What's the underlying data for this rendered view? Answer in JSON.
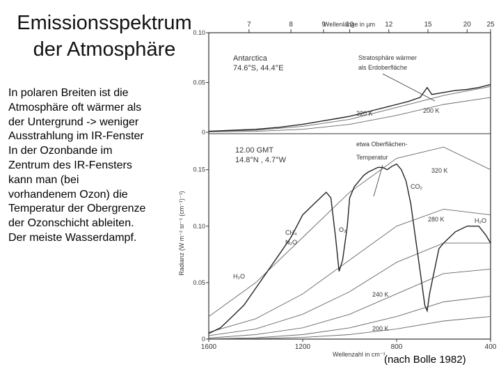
{
  "slide": {
    "title_line1": "Emissionsspektrum",
    "title_line2": "der Atmosphäre",
    "body_lines": [
      "In polaren Breiten ist die",
      "Atmosphäre oft wärmer als",
      "der Untergrund -> weniger",
      "Ausstrahlung im IR-Fenster",
      "In der Ozonbande im",
      "Zentrum des IR-Fensters",
      "kann man (bei",
      "vorhandenem Ozon) die",
      "Temperatur der Obergrenze",
      "der Ozonschicht ableiten.",
      "Der meiste Wasserdampf."
    ],
    "source": "(nach Bolle 1982)"
  },
  "colors": {
    "ink": "#333333",
    "curve": "#666666",
    "background": "#ffffff"
  },
  "chart_data": {
    "type": "line",
    "top_axis_label": "Wellenlänge in µm",
    "top_ticks": [
      7,
      8,
      9,
      10,
      12,
      15,
      20,
      25
    ],
    "xlabel": "Wellenzahl in cm⁻¹",
    "x_ticks": [
      1600,
      1200,
      800,
      400
    ],
    "xlim": [
      1600,
      400
    ],
    "ylabel": "Radianz  (W m⁻² sr⁻¹ (cm⁻¹)⁻¹)",
    "panels": [
      {
        "name": "top",
        "labels": [
          "Antarctica",
          "74.6°S, 44.4°E"
        ],
        "y_ticks": [
          0,
          0.05,
          0.1
        ],
        "ylim": [
          0,
          0.1
        ],
        "annotations": [
          "Stratosphäre wärmer",
          "als Erdoberfläche"
        ],
        "planck_labels": [
          "220 K",
          "200 K"
        ],
        "spectrum": {
          "x": [
            1600,
            1500,
            1400,
            1300,
            1200,
            1100,
            1050,
            1000,
            950,
            900,
            850,
            800,
            750,
            700,
            670,
            650,
            600,
            550,
            500,
            450,
            400
          ],
          "y": [
            0.001,
            0.002,
            0.003,
            0.005,
            0.008,
            0.012,
            0.014,
            0.016,
            0.019,
            0.022,
            0.025,
            0.028,
            0.031,
            0.035,
            0.045,
            0.038,
            0.04,
            0.042,
            0.043,
            0.045,
            0.048
          ]
        },
        "planck_curves": [
          {
            "x": [
              1600,
              1400,
              1200,
              1000,
              800,
              600,
              400
            ],
            "y": [
              0.001,
              0.002,
              0.006,
              0.013,
              0.025,
              0.037,
              0.046
            ]
          },
          {
            "x": [
              1600,
              1400,
              1200,
              1000,
              800,
              600,
              400
            ],
            "y": [
              0.0005,
              0.001,
              0.003,
              0.008,
              0.017,
              0.028,
              0.035
            ]
          }
        ]
      },
      {
        "name": "bottom",
        "labels": [
          "12.00 GMT",
          "14.8°N , 4.7°W"
        ],
        "y_ticks": [
          0,
          0.05,
          0.1,
          0.15
        ],
        "ylim": [
          0,
          0.18
        ],
        "annotations": [
          "etwa Oberflächen-",
          "Temperatur"
        ],
        "planck_labels": [
          "320 K",
          "280 K",
          "240 K",
          "200 K"
        ],
        "band_labels": [
          "CO₂",
          "O₃",
          "CH₄",
          "N₂O",
          "H₂O",
          "H₂O"
        ],
        "spectrum": {
          "x": [
            1600,
            1550,
            1500,
            1450,
            1400,
            1350,
            1300,
            1250,
            1200,
            1150,
            1100,
            1080,
            1060,
            1045,
            1030,
            1010,
            1000,
            980,
            960,
            940,
            920,
            900,
            880,
            860,
            840,
            820,
            800,
            780,
            760,
            740,
            720,
            700,
            680,
            670,
            660,
            640,
            620,
            600,
            550,
            500,
            450,
            420,
            400
          ],
          "y": [
            0.005,
            0.01,
            0.02,
            0.03,
            0.045,
            0.06,
            0.075,
            0.09,
            0.11,
            0.12,
            0.13,
            0.125,
            0.09,
            0.06,
            0.07,
            0.1,
            0.125,
            0.135,
            0.14,
            0.145,
            0.148,
            0.15,
            0.152,
            0.152,
            0.15,
            0.153,
            0.155,
            0.15,
            0.14,
            0.12,
            0.09,
            0.06,
            0.03,
            0.025,
            0.04,
            0.06,
            0.08,
            0.085,
            0.095,
            0.1,
            0.1,
            0.092,
            0.085
          ]
        },
        "planck_curves": [
          {
            "x": [
              1600,
              1400,
              1200,
              1000,
              800,
              600,
              400
            ],
            "y": [
              0.02,
              0.05,
              0.09,
              0.13,
              0.16,
              0.17,
              0.15
            ]
          },
          {
            "x": [
              1600,
              1400,
              1200,
              1000,
              800,
              600,
              400
            ],
            "y": [
              0.006,
              0.018,
              0.04,
              0.07,
              0.1,
              0.115,
              0.11
            ]
          },
          {
            "x": [
              1600,
              1400,
              1200,
              1000,
              800,
              600,
              400
            ],
            "y": [
              0.003,
              0.009,
              0.022,
              0.042,
              0.068,
              0.085,
              0.085
            ]
          },
          {
            "x": [
              1600,
              1400,
              1200,
              1000,
              800,
              600,
              400
            ],
            "y": [
              0.001,
              0.004,
              0.01,
              0.022,
              0.04,
              0.058,
              0.062
            ]
          },
          {
            "x": [
              1600,
              1400,
              1200,
              1000,
              800,
              600,
              400
            ],
            "y": [
              0.0003,
              0.0012,
              0.004,
              0.01,
              0.02,
              0.033,
              0.038
            ]
          },
          {
            "x": [
              1600,
              1400,
              1200,
              1000,
              800,
              600,
              400
            ],
            "y": [
              0.0001,
              0.0005,
              0.0015,
              0.004,
              0.009,
              0.016,
              0.02
            ]
          }
        ]
      }
    ]
  }
}
